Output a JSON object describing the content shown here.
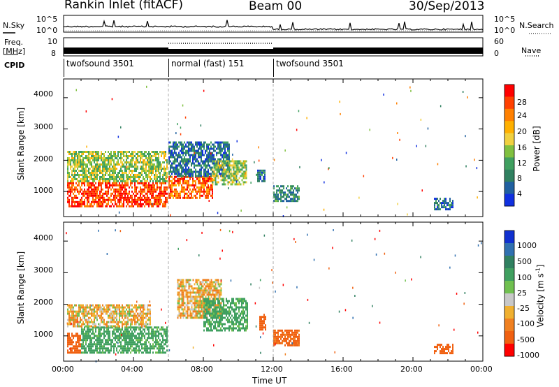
{
  "header": {
    "station": "Rankin Inlet (fitACF)",
    "beam": "Beam 00",
    "date": "30/Sep/2013"
  },
  "side_labels": {
    "nsky": "N.Sky",
    "freq": "Freq.",
    "mhz": "[MHz]",
    "cpid": "CPID",
    "nsearch": "N.Search",
    "nave": "Nave"
  },
  "noise_axis": {
    "left_ticks": [
      "10^5",
      "10^0"
    ],
    "right_ticks": [
      "10^5",
      "10^0"
    ]
  },
  "freq_axis": {
    "left_ticks": [
      "10",
      "8"
    ],
    "right_ticks": [
      "60",
      "0"
    ]
  },
  "cpid_segments": [
    {
      "label": "twofsound 3501",
      "start_hour": 0,
      "end_hour": 6
    },
    {
      "label": "normal (fast) 151",
      "start_hour": 6,
      "end_hour": 12
    },
    {
      "label": "twofsound 3501",
      "start_hour": 12,
      "end_hour": 24
    }
  ],
  "x_axis": {
    "label": "Time UT",
    "ticks": [
      "00:00",
      "04:00",
      "08:00",
      "12:00",
      "16:00",
      "20:00",
      "00:00"
    ]
  },
  "power_panel": {
    "ylabel": "Slant Range [km]",
    "yticks": [
      "4000",
      "3000",
      "2000",
      "1000"
    ],
    "colorbar_label": "Power [dB]",
    "colorbar_ticks": [
      "28",
      "24",
      "20",
      "16",
      "12",
      "8",
      "4"
    ],
    "colors": [
      "#ff0000",
      "#ff4000",
      "#ff8000",
      "#ffb000",
      "#f0d040",
      "#80c040",
      "#40a060",
      "#308060",
      "#2060a0",
      "#1030e0"
    ]
  },
  "velocity_panel": {
    "ylabel": "Slant Range [km]",
    "yticks": [
      "4000",
      "3000",
      "2000",
      "1000"
    ],
    "colorbar_label": "Velocity [m s",
    "colorbar_label_sup": "-1",
    "colorbar_label_end": "]",
    "colorbar_ticks": [
      "1000",
      "500",
      "100",
      "25",
      "-25",
      "-100",
      "-500",
      "-1000"
    ],
    "colors": [
      "#1030d0",
      "#3070b0",
      "#308060",
      "#40a060",
      "#70c050",
      "#c8c8c8",
      "#f0b030",
      "#f08020",
      "#f06010",
      "#ff0000"
    ]
  },
  "chart_data": [
    {
      "type": "heatmap",
      "title": "Power [dB]",
      "xlabel": "Time UT",
      "ylabel": "Slant Range [km]",
      "xlim_hours": [
        0,
        24
      ],
      "ylim": [
        200,
        4600
      ],
      "zlim": [
        0,
        30
      ],
      "description_blocks": [
        {
          "t0": 0.2,
          "t1": 5.9,
          "r0": 500,
          "r1": 1300,
          "z": 26
        },
        {
          "t0": 0.2,
          "t1": 5.9,
          "r0": 1300,
          "r1": 2300,
          "z": 14
        },
        {
          "t0": 6.0,
          "t1": 8.5,
          "r0": 800,
          "r1": 1500,
          "z": 24
        },
        {
          "t0": 6.0,
          "t1": 9.5,
          "r0": 1500,
          "r1": 2600,
          "z": 6
        },
        {
          "t0": 8.5,
          "t1": 10.5,
          "r0": 1200,
          "r1": 2000,
          "z": 14
        },
        {
          "t0": 11.0,
          "t1": 11.5,
          "r0": 1300,
          "r1": 1700,
          "z": 6
        },
        {
          "t0": 12.0,
          "t1": 13.5,
          "r0": 700,
          "r1": 1200,
          "z": 8
        },
        {
          "t0": 21.2,
          "t1": 22.3,
          "r0": 450,
          "r1": 800,
          "z": 6
        }
      ]
    },
    {
      "type": "heatmap",
      "title": "Velocity [m s-1]",
      "xlabel": "Time UT",
      "ylabel": "Slant Range [km]",
      "xlim_hours": [
        0,
        24
      ],
      "ylim": [
        200,
        4600
      ],
      "zlim": [
        -1000,
        1000
      ],
      "description_blocks": [
        {
          "t0": 0.2,
          "t1": 1.0,
          "r0": 500,
          "r1": 1100,
          "z": -200
        },
        {
          "t0": 1.0,
          "t1": 5.9,
          "r0": 500,
          "r1": 1300,
          "z": 150
        },
        {
          "t0": 0.2,
          "t1": 5.0,
          "r0": 1300,
          "r1": 2000,
          "z": 0
        },
        {
          "t0": 6.5,
          "t1": 9.0,
          "r0": 1600,
          "r1": 2800,
          "z": 0
        },
        {
          "t0": 8.0,
          "t1": 10.5,
          "r0": 1200,
          "r1": 2200,
          "z": 150
        },
        {
          "t0": 11.2,
          "t1": 11.6,
          "r0": 1200,
          "r1": 1700,
          "z": -200
        },
        {
          "t0": 12.0,
          "t1": 13.5,
          "r0": 700,
          "r1": 1200,
          "z": -150
        },
        {
          "t0": 21.2,
          "t1": 22.3,
          "r0": 450,
          "r1": 750,
          "z": -200
        }
      ]
    }
  ]
}
